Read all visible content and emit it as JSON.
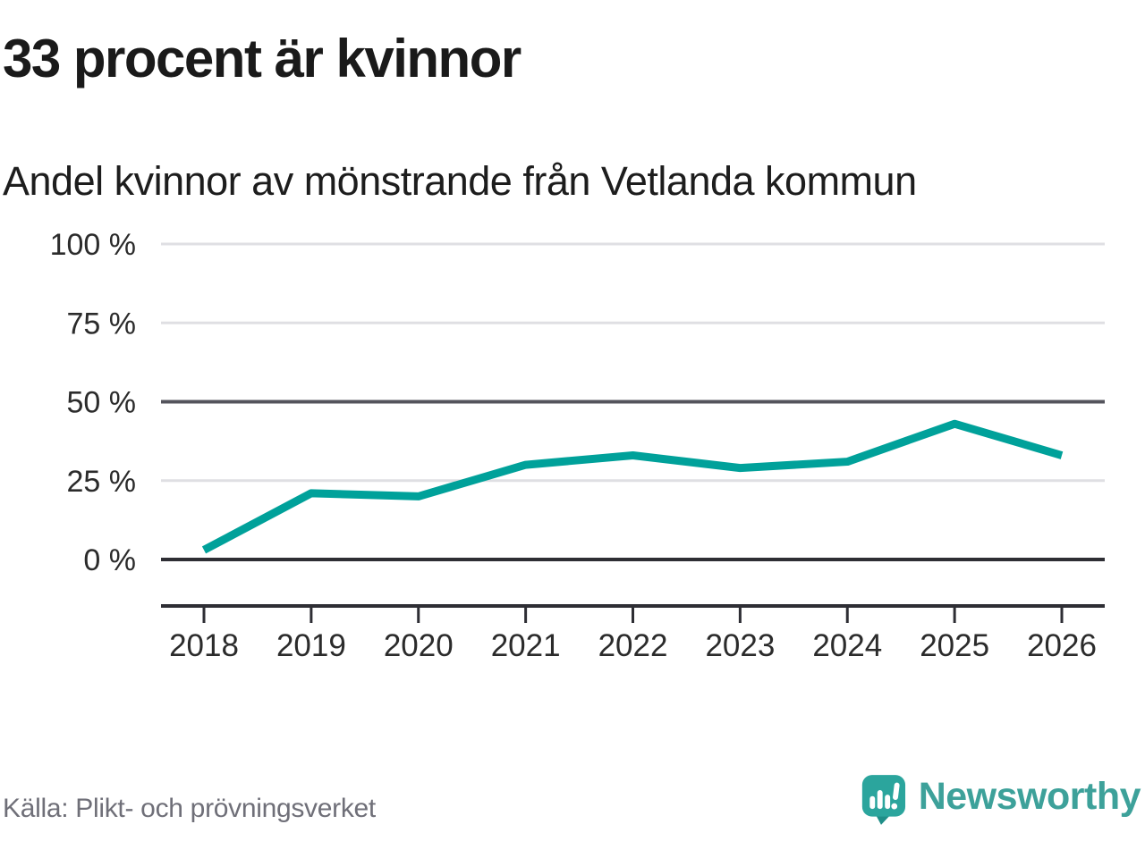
{
  "title": "33 procent är kvinnor",
  "subtitle": "Andel kvinnor av mönstrande från Vetlanda kommun",
  "source": "Källa: Plikt- och prövningsverket",
  "branding": {
    "wordmark": "Newsworthy",
    "logo_icon": "newsworthy-speech-bubble-bar-chart-icon"
  },
  "colors": {
    "line": "#00a19a",
    "brand_teal": "#3da19a",
    "logo_bubble": "#2ba59d",
    "logo_tail": "#1f8e88",
    "grid_light": "#dfdfe3",
    "grid_mid": "#54545c",
    "grid_dark": "#2e2e34",
    "tick_label": "#2b2b2b",
    "title_text": "#1a1a1a",
    "source_text": "#6f6f78"
  },
  "chart_data": {
    "type": "line",
    "title": "33 procent är kvinnor",
    "subtitle": "Andel kvinnor av mönstrande från Vetlanda kommun",
    "x": [
      2018,
      2019,
      2020,
      2021,
      2022,
      2023,
      2024,
      2025,
      2026
    ],
    "x_labels": [
      "2018",
      "2019",
      "2020",
      "2021",
      "2022",
      "2023",
      "2024",
      "2025",
      "2026"
    ],
    "series": [
      {
        "name": "Andel kvinnor av mönstrande, Vetlanda kommun",
        "values": [
          3,
          21,
          20,
          30,
          33,
          29,
          31,
          43,
          33
        ]
      }
    ],
    "unit": "%",
    "ylim": [
      0,
      100
    ],
    "yticks": [
      0,
      25,
      50,
      75,
      100
    ],
    "ytick_labels": [
      "0 %",
      "25 %",
      "50 %",
      "75 %",
      "100 %"
    ],
    "grid": "horizontal",
    "emphasized_gridlines": [
      0,
      50
    ],
    "legend_position": "none"
  }
}
